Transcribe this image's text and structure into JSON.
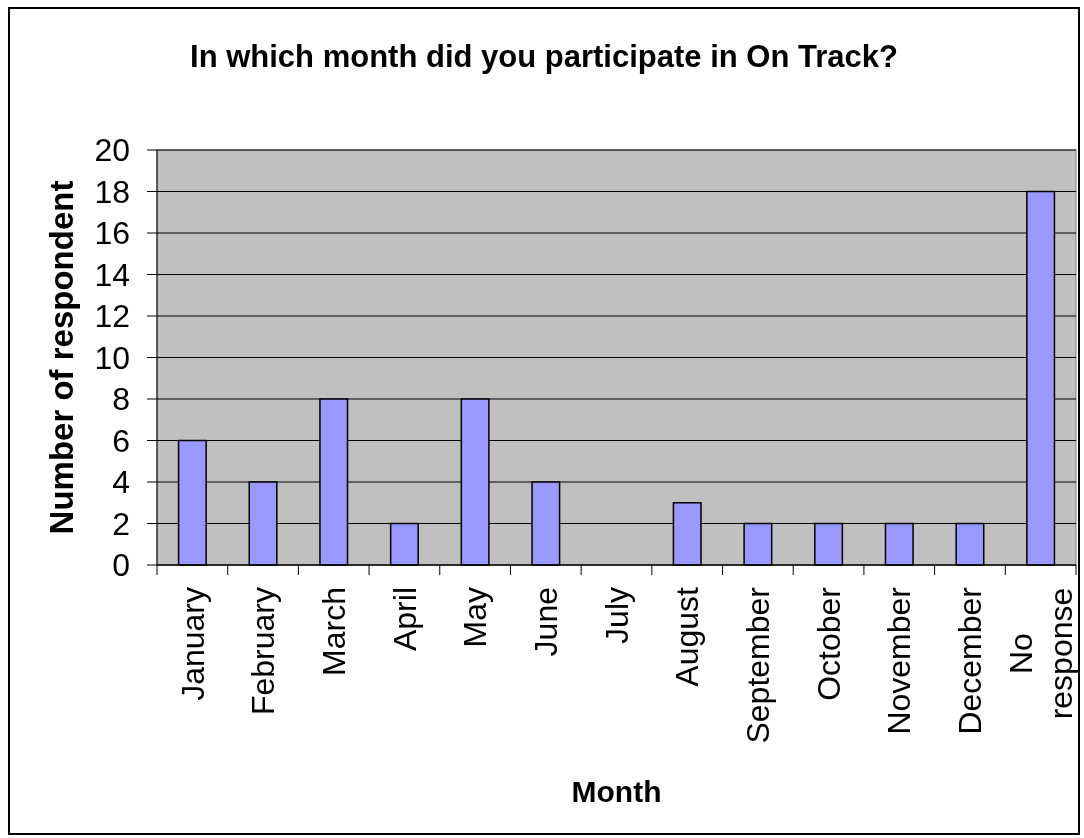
{
  "chart_data": {
    "type": "bar",
    "title": "In which month did you participate in On Track?",
    "xlabel": "Month",
    "ylabel": "Number of respondent",
    "categories": [
      "January",
      "February",
      "March",
      "April",
      "May",
      "June",
      "July",
      "August",
      "September",
      "October",
      "November",
      "December",
      "No response"
    ],
    "values": [
      6,
      4,
      8,
      2,
      8,
      4,
      0,
      3,
      2,
      2,
      2,
      2,
      18
    ],
    "color": "#9999ff",
    "ylim": [
      0,
      20
    ],
    "yticks": [
      0,
      2,
      4,
      6,
      8,
      10,
      12,
      14,
      16,
      18,
      20
    ],
    "grid": "y"
  }
}
